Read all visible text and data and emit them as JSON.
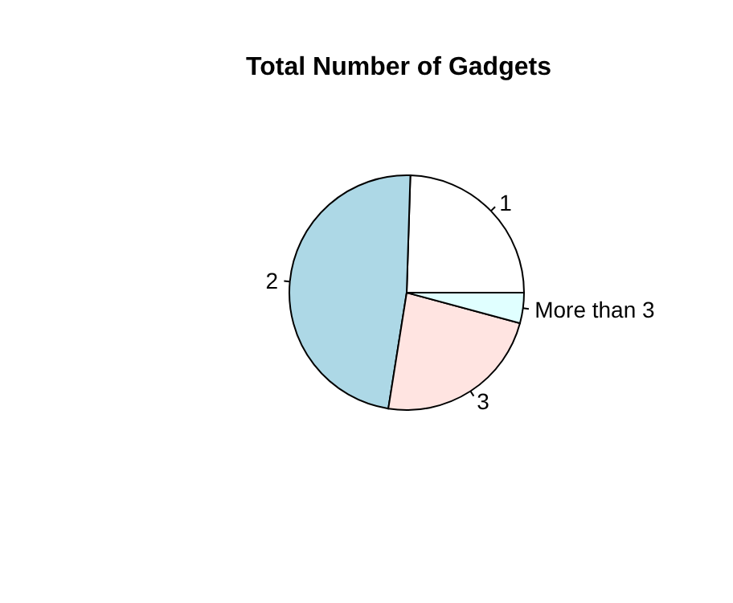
{
  "chart_data": {
    "type": "pie",
    "title": "Total Number of Gadgets",
    "categories": [
      "1",
      "2",
      "3",
      "More than 3"
    ],
    "values": [
      24.5,
      48,
      23.3,
      4.2
    ],
    "colors": [
      "#ffffff",
      "#add8e6",
      "#ffe4e1",
      "#e0ffff"
    ]
  }
}
